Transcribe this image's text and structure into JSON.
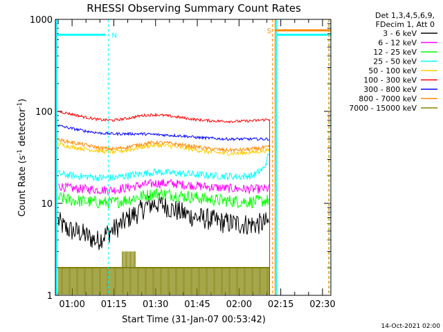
{
  "chart_data": {
    "type": "line",
    "title": "RHESSI Observing Summary Count Rates",
    "xlabel": "Start Time (31-Jan-07 00:53:42)",
    "ylabel_main": "Count Rate (s",
    "ylabel_sup1": "-1",
    "ylabel_mid": " detector",
    "ylabel_sup2": "-1",
    "ylabel_end": ")",
    "x_axis": {
      "unit": "minutes after 00:00",
      "range": [
        54,
        153
      ],
      "tick_values": [
        60,
        75,
        90,
        105,
        120,
        135,
        150
      ],
      "tick_labels": [
        "01:00",
        "01:15",
        "01:30",
        "01:45",
        "02:00",
        "02:15",
        "02:30"
      ]
    },
    "y_axis": {
      "scale": "log",
      "range": [
        1,
        1000
      ],
      "tick_values": [
        1,
        10,
        100,
        1000
      ],
      "tick_labels": [
        "1",
        "10",
        "100",
        "1000"
      ]
    },
    "legend": {
      "placement": "right, outside plot",
      "header": [
        "Det 1,3,4,5,6,9,",
        "FDecim 1, Att 0"
      ]
    },
    "data_end": 131,
    "series": [
      {
        "name": "3 - 6 keV",
        "color": "#000000",
        "x": [
          55,
          57,
          60,
          63,
          66,
          69,
          72,
          75,
          78,
          81,
          84,
          87,
          90,
          93,
          96,
          99,
          102,
          105,
          108,
          111,
          114,
          117,
          120,
          123,
          126,
          129,
          131
        ],
        "y": [
          6.5,
          5.5,
          5.0,
          4.8,
          4.3,
          3.9,
          4.6,
          5.2,
          6.0,
          7.2,
          8.0,
          9.5,
          10,
          9.6,
          8.6,
          8.0,
          7.4,
          7.0,
          6.8,
          6.5,
          6.2,
          6.1,
          6.0,
          5.9,
          5.9,
          6.1,
          6.2
        ],
        "noise": 0.12
      },
      {
        "name": "6 - 12 keV",
        "color": "#ff00ff",
        "x": [
          55,
          60,
          65,
          70,
          75,
          80,
          85,
          90,
          95,
          100,
          105,
          110,
          115,
          120,
          125,
          131
        ],
        "y": [
          15.5,
          14.5,
          14.3,
          14.0,
          14.0,
          14.8,
          15.8,
          16.5,
          16.5,
          16.0,
          15.5,
          15.0,
          14.6,
          14.4,
          14.2,
          14.5
        ],
        "noise": 0.05
      },
      {
        "name": "12 - 25 keV",
        "color": "#00ff00",
        "x": [
          55,
          60,
          65,
          70,
          75,
          80,
          85,
          90,
          95,
          100,
          105,
          110,
          115,
          120,
          125,
          131
        ],
        "y": [
          11.5,
          10.8,
          10.5,
          10.2,
          10.2,
          11.0,
          12.0,
          12.8,
          12.5,
          12.0,
          11.5,
          11.0,
          10.7,
          10.5,
          10.4,
          10.8
        ],
        "noise": 0.07
      },
      {
        "name": "25 - 50 keV",
        "color": "#00ffff",
        "x": [
          55,
          60,
          65,
          70,
          75,
          80,
          85,
          90,
          95,
          100,
          105,
          110,
          115,
          120,
          125,
          129,
          131
        ],
        "y": [
          21,
          20,
          19.5,
          19,
          19,
          20,
          21,
          22,
          21.5,
          21,
          20.5,
          20,
          19.8,
          19.5,
          20,
          24,
          36
        ],
        "noise": 0.04
      },
      {
        "name": "50 - 100 keV",
        "color": "#ffcc00",
        "x": [
          55,
          60,
          65,
          70,
          75,
          80,
          85,
          90,
          95,
          100,
          105,
          110,
          115,
          120,
          125,
          131
        ],
        "y": [
          44,
          41,
          39,
          37,
          36,
          38,
          41,
          43,
          42,
          40,
          38,
          36,
          35,
          35,
          36,
          38
        ],
        "noise": 0.025
      },
      {
        "name": "100 - 300 keV",
        "color": "#ff0000",
        "x": [
          55,
          60,
          65,
          70,
          75,
          80,
          85,
          90,
          95,
          100,
          105,
          110,
          115,
          120,
          125,
          131
        ],
        "y": [
          100,
          93,
          86,
          81,
          80,
          84,
          90,
          92,
          89,
          85,
          81,
          79,
          78,
          78,
          79,
          82
        ],
        "noise": 0.015
      },
      {
        "name": "300 - 800 keV",
        "color": "#0000ff",
        "x": [
          55,
          60,
          65,
          70,
          75,
          80,
          85,
          90,
          95,
          100,
          105,
          110,
          115,
          120,
          125,
          131
        ],
        "y": [
          70,
          65,
          61,
          58,
          57,
          57,
          57,
          56,
          55,
          54,
          52,
          51,
          50,
          50,
          50,
          50
        ],
        "noise": 0.015
      },
      {
        "name": "800 - 7000 keV",
        "color": "#ff8800",
        "x": [
          55,
          60,
          65,
          70,
          75,
          80,
          85,
          90,
          95,
          100,
          105,
          110,
          115,
          120,
          125,
          131
        ],
        "y": [
          49,
          46,
          43,
          40,
          39,
          41,
          44,
          46,
          45,
          43,
          41,
          39,
          38,
          38,
          39,
          41
        ],
        "noise": 0.02
      },
      {
        "name": "7000 - 15000 keV",
        "color": "#808000",
        "x": [
          55,
          131
        ],
        "y": [
          2,
          2
        ],
        "noise": 0
      }
    ],
    "annotations": [
      {
        "text": "N",
        "x": 73,
        "y": 680,
        "color": "#00ffff"
      },
      {
        "text": "S",
        "x": 132,
        "y": 760,
        "color": "#ff8800"
      }
    ],
    "timestamp": "14-Oct-2021 02:00"
  }
}
